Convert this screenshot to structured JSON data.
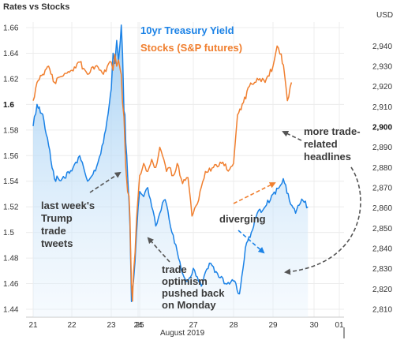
{
  "chart_data": {
    "type": "line",
    "title": "Rates vs Stocks",
    "xlabel": "August 2019",
    "y_right_unit": "USD",
    "x_ticks": [
      "21",
      "22",
      "23",
      "24",
      "25",
      "27",
      "28",
      "29",
      "30",
      "01"
    ],
    "y_left": {
      "ticks": [
        "1.44",
        "1.46",
        "1.48",
        "1.5",
        "1.52",
        "1.54",
        "1.56",
        "1.58",
        "1.6",
        "1.62",
        "1.64",
        "1.66"
      ],
      "bold_tick": "1.6",
      "range": [
        1.44,
        1.66
      ]
    },
    "y_right": {
      "ticks": [
        "2,810",
        "2,820",
        "2,830",
        "2,840",
        "2,850",
        "2,860",
        "2,870",
        "2,880",
        "2,890",
        "2,900",
        "2,910",
        "2,920",
        "2,930",
        "2,940"
      ],
      "bold_tick": "2,900",
      "range": [
        2810,
        2944
      ]
    },
    "series": [
      {
        "name": "10yr Treasury Yield",
        "color": "#1b82e6",
        "axis": "left",
        "area_fill": true,
        "points": [
          [
            21.0,
            1.583
          ],
          [
            21.1,
            1.6
          ],
          [
            21.25,
            1.592
          ],
          [
            21.4,
            1.568
          ],
          [
            21.55,
            1.542
          ],
          [
            21.75,
            1.542
          ],
          [
            22.0,
            1.548
          ],
          [
            22.2,
            1.56
          ],
          [
            22.4,
            1.54
          ],
          [
            22.6,
            1.548
          ],
          [
            22.8,
            1.57
          ],
          [
            22.95,
            1.6
          ],
          [
            23.0,
            1.612
          ],
          [
            23.1,
            1.64
          ],
          [
            23.2,
            1.632
          ],
          [
            23.3,
            1.65
          ],
          [
            23.4,
            1.634
          ],
          [
            23.5,
            1.65
          ],
          [
            23.55,
            1.662
          ],
          [
            23.62,
            1.64
          ],
          [
            23.7,
            1.595
          ],
          [
            23.75,
            1.592
          ],
          [
            23.8,
            1.57
          ],
          [
            23.85,
            1.56
          ],
          [
            23.9,
            1.545
          ],
          [
            23.98,
            1.524
          ],
          [
            24.05,
            1.505
          ],
          [
            24.12,
            1.478
          ],
          [
            24.2,
            1.446
          ],
          [
            24.3,
            1.456
          ],
          [
            24.4,
            1.462
          ],
          [
            24.55,
            1.478
          ],
          [
            24.7,
            1.5
          ],
          [
            24.85,
            1.52
          ],
          [
            25.0,
            1.532
          ],
          [
            25.15,
            1.528
          ],
          [
            25.3,
            1.535
          ],
          [
            25.45,
            1.52
          ],
          [
            25.6,
            1.505
          ],
          [
            25.75,
            1.515
          ],
          [
            25.9,
            1.525
          ],
          [
            26.0,
            1.522
          ],
          [
            26.1,
            1.51
          ],
          [
            26.25,
            1.498
          ],
          [
            26.4,
            1.485
          ],
          [
            26.6,
            1.468
          ],
          [
            26.8,
            1.462
          ],
          [
            27.0,
            1.472
          ],
          [
            27.2,
            1.458
          ],
          [
            27.4,
            1.476
          ],
          [
            27.6,
            1.468
          ],
          [
            27.8,
            1.46
          ],
          [
            28.0,
            1.462
          ],
          [
            28.15,
            1.452
          ],
          [
            28.3,
            1.488
          ],
          [
            28.45,
            1.5
          ],
          [
            28.6,
            1.515
          ],
          [
            28.8,
            1.52
          ],
          [
            29.0,
            1.53
          ],
          [
            29.15,
            1.535
          ],
          [
            29.25,
            1.542
          ],
          [
            29.4,
            1.525
          ],
          [
            29.55,
            1.515
          ],
          [
            29.7,
            1.526
          ],
          [
            29.85,
            1.52
          ]
        ]
      },
      {
        "name": "Stocks (S&P futures)",
        "color": "#f07f2f",
        "axis": "right",
        "area_fill": false,
        "points": [
          [
            21.0,
            2913
          ],
          [
            21.1,
            2922
          ],
          [
            21.25,
            2926
          ],
          [
            21.4,
            2930
          ],
          [
            21.55,
            2922
          ],
          [
            21.75,
            2925
          ],
          [
            22.0,
            2928
          ],
          [
            22.2,
            2932
          ],
          [
            22.4,
            2926
          ],
          [
            22.6,
            2930
          ],
          [
            22.8,
            2926
          ],
          [
            23.0,
            2932
          ],
          [
            23.1,
            2928
          ],
          [
            23.2,
            2936
          ],
          [
            23.3,
            2930
          ],
          [
            23.4,
            2933
          ],
          [
            23.5,
            2928
          ],
          [
            23.55,
            2926
          ],
          [
            23.62,
            2912
          ],
          [
            23.7,
            2905
          ],
          [
            23.8,
            2880
          ],
          [
            23.9,
            2868
          ],
          [
            23.98,
            2866
          ],
          [
            24.05,
            2855
          ],
          [
            24.12,
            2838
          ],
          [
            24.2,
            2822
          ],
          [
            24.3,
            2814
          ],
          [
            24.4,
            2828
          ],
          [
            24.55,
            2838
          ],
          [
            24.7,
            2855
          ],
          [
            24.85,
            2866
          ],
          [
            25.0,
            2876
          ],
          [
            25.15,
            2882
          ],
          [
            25.3,
            2878
          ],
          [
            25.45,
            2884
          ],
          [
            25.6,
            2880
          ],
          [
            25.75,
            2890
          ],
          [
            25.9,
            2884
          ],
          [
            26.0,
            2878
          ],
          [
            26.1,
            2880
          ],
          [
            26.25,
            2876
          ],
          [
            26.4,
            2882
          ],
          [
            26.6,
            2872
          ],
          [
            26.8,
            2875
          ],
          [
            26.95,
            2856
          ],
          [
            27.1,
            2862
          ],
          [
            27.3,
            2878
          ],
          [
            27.5,
            2880
          ],
          [
            27.7,
            2882
          ],
          [
            27.9,
            2879
          ],
          [
            28.0,
            2882
          ],
          [
            28.1,
            2906
          ],
          [
            28.25,
            2912
          ],
          [
            28.4,
            2920
          ],
          [
            28.6,
            2924
          ],
          [
            28.8,
            2922
          ],
          [
            29.0,
            2930
          ],
          [
            29.1,
            2940
          ],
          [
            29.2,
            2936
          ],
          [
            29.28,
            2926
          ],
          [
            29.35,
            2913
          ],
          [
            29.45,
            2922
          ]
        ]
      }
    ],
    "annotations": [
      {
        "lines": [
          "last week's",
          "Trump",
          "trade",
          "tweets"
        ]
      },
      {
        "lines": [
          "trade",
          "optimism",
          "pushed back",
          "on Monday"
        ]
      },
      {
        "lines": [
          "diverging"
        ]
      },
      {
        "lines": [
          "more trade-",
          "related",
          "headlines"
        ]
      }
    ]
  }
}
